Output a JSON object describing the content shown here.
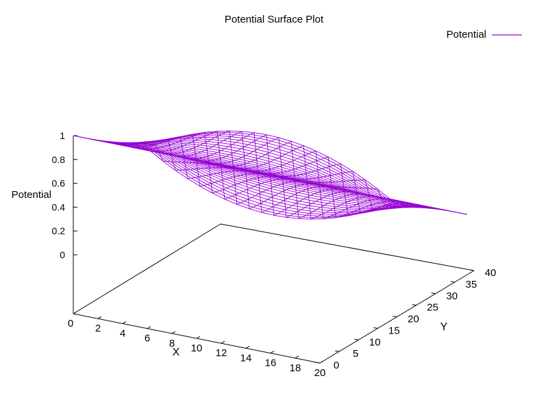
{
  "chart_data": {
    "type": "surface",
    "title": "Potential Surface Plot",
    "xlabel": "X",
    "ylabel": "Y",
    "zlabel": "Potential",
    "legend": {
      "label": "Potential",
      "placement": "top-right"
    },
    "xlim": [
      0,
      20
    ],
    "ylim": [
      0,
      40
    ],
    "zlim": [
      0,
      1
    ],
    "x_ticks": [
      "0",
      "2",
      "4",
      "6",
      "8",
      "10",
      "12",
      "14",
      "16",
      "18",
      "20"
    ],
    "y_ticks": [
      "0",
      "5",
      "10",
      "15",
      "20",
      "25",
      "30",
      "35",
      "40"
    ],
    "z_ticks": [
      "0",
      "0.2",
      "0.4",
      "0.6",
      "0.8",
      "1"
    ],
    "surface": {
      "x": [
        0,
        20
      ],
      "y": [
        0,
        40
      ],
      "samples_x": 21,
      "samples_y": 41,
      "z_at_x0_y0": 1,
      "z_at_x0_y40": 0,
      "z_at_x20_y0": 1,
      "z_at_x20_y40": 0,
      "z_at_x10_y20": 0.5
    },
    "colors": {
      "surface": "#9400d3",
      "axes": "#000000"
    },
    "grid": false
  }
}
